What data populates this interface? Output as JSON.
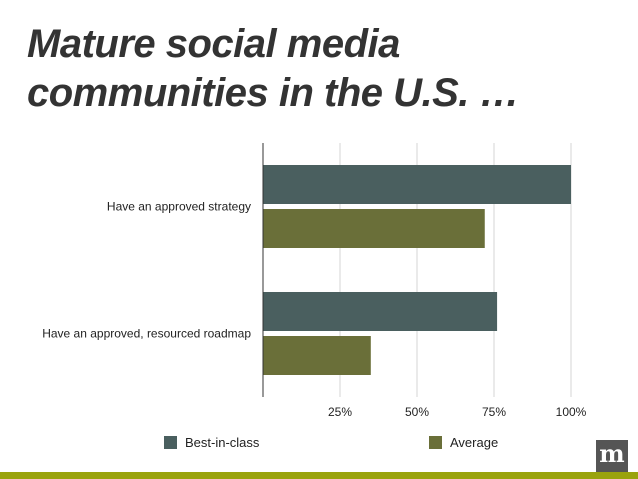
{
  "title": "Mature social media communities in the U.S. …",
  "logo_text": "m",
  "colors": {
    "best": "#4a5f5f",
    "average": "#6a6f39",
    "footer": "#9aa30d",
    "grid": "#d4d4d4",
    "axis": "#333333"
  },
  "chart_data": {
    "type": "bar",
    "orientation": "horizontal",
    "categories": [
      "Have an approved strategy",
      "Have an approved, resourced roadmap"
    ],
    "series": [
      {
        "name": "Best-in-class",
        "values": [
          100,
          76
        ]
      },
      {
        "name": "Average",
        "values": [
          72,
          35
        ]
      }
    ],
    "xlim": [
      0,
      100
    ],
    "x_ticks": [
      25,
      50,
      75,
      100
    ],
    "x_tick_labels": [
      "25%",
      "50%",
      "75%",
      "100%"
    ],
    "grid": true,
    "legend_position": "bottom"
  }
}
